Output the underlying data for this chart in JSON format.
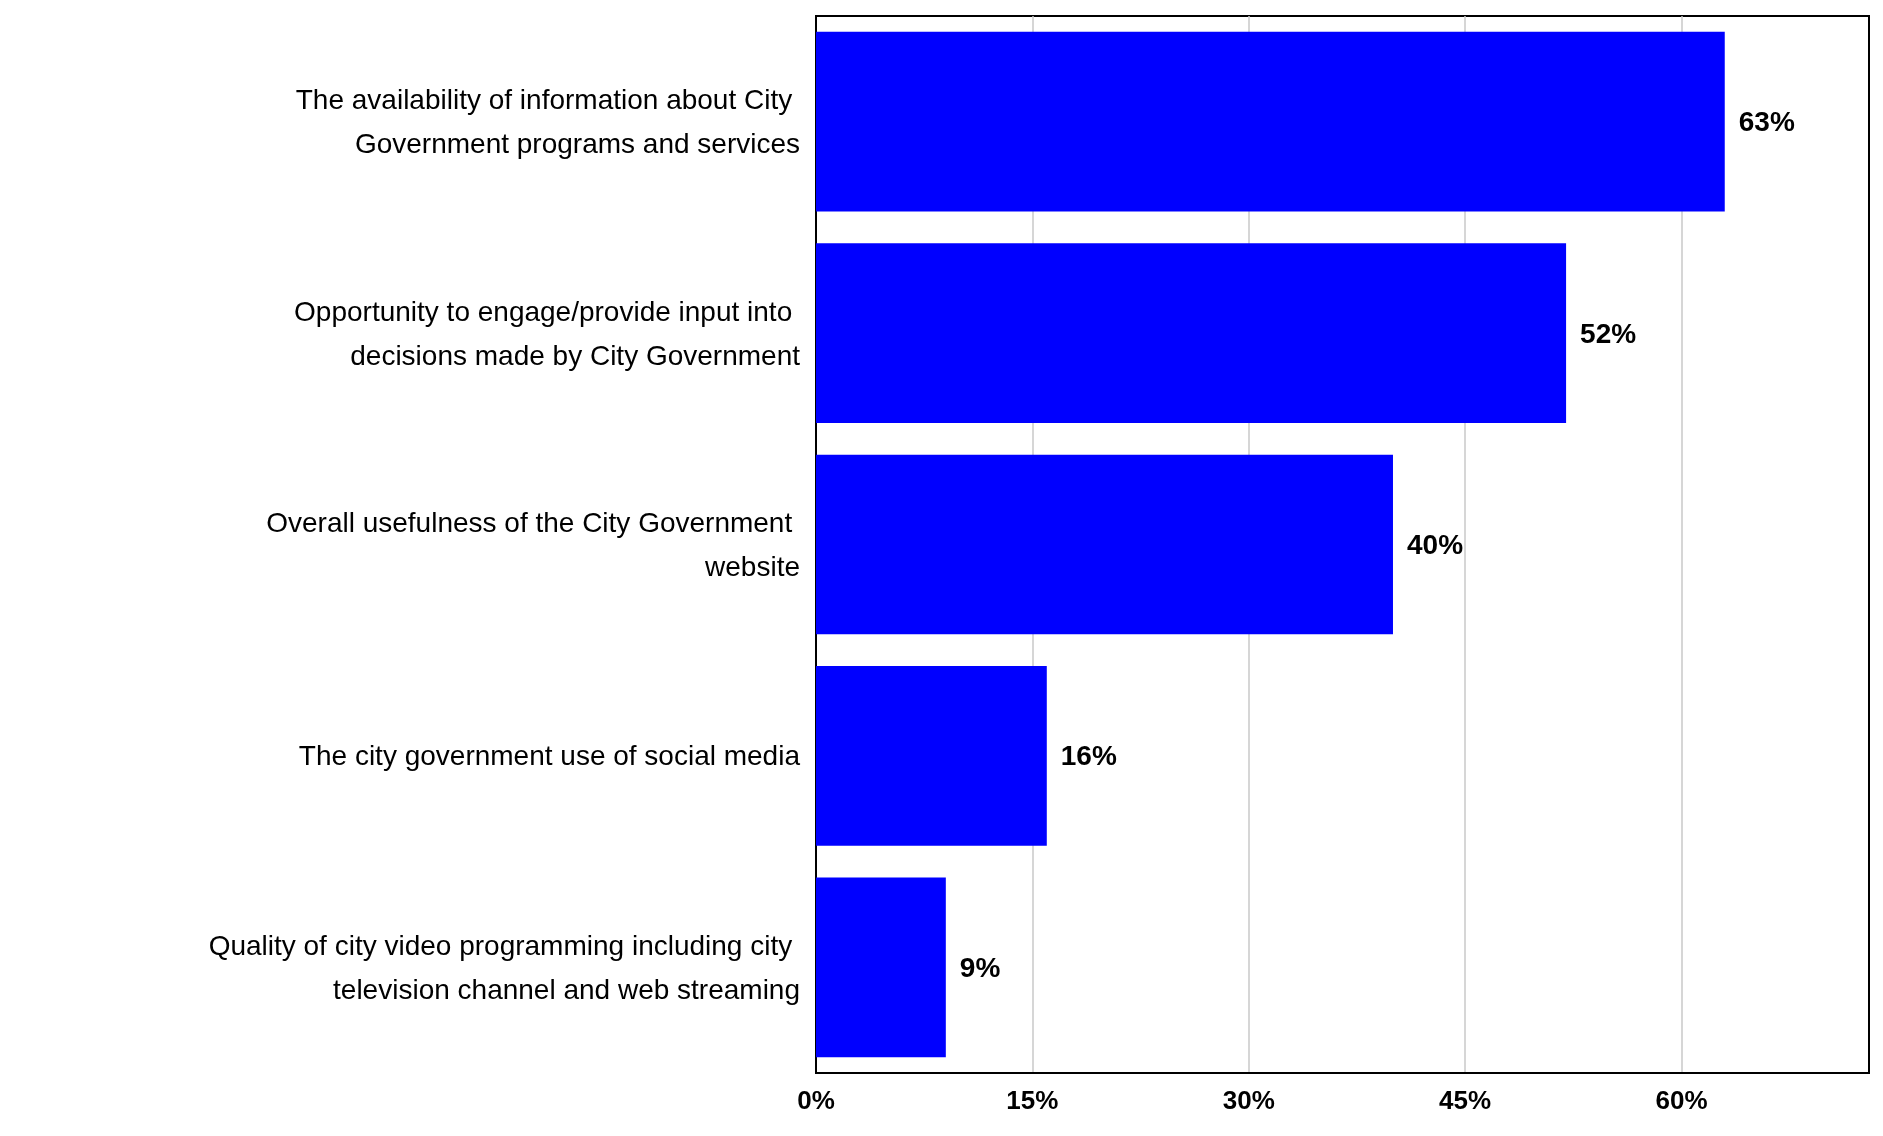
{
  "chart_data": {
    "type": "bar",
    "orientation": "horizontal",
    "categories": [
      "The availability of information about City Government programs and services",
      "Opportunity to engage/provide input into decisions made by City Government",
      "Overall usefulness of the City Government website",
      "The city government use of social media",
      "Quality of city video programming including city television channel and web streaming"
    ],
    "values": [
      63,
      52,
      40,
      16,
      9
    ],
    "value_labels": [
      "63%",
      "52%",
      "40%",
      "16%",
      "9%"
    ],
    "color": "#0000ff",
    "xlim": [
      0,
      73
    ],
    "xticks": [
      {
        "value": 0,
        "label": "0%"
      },
      {
        "value": 15,
        "label": "15%"
      },
      {
        "value": 30,
        "label": "30%"
      },
      {
        "value": 45,
        "label": "45%"
      },
      {
        "value": 60,
        "label": "60%"
      }
    ],
    "grid": "x"
  }
}
